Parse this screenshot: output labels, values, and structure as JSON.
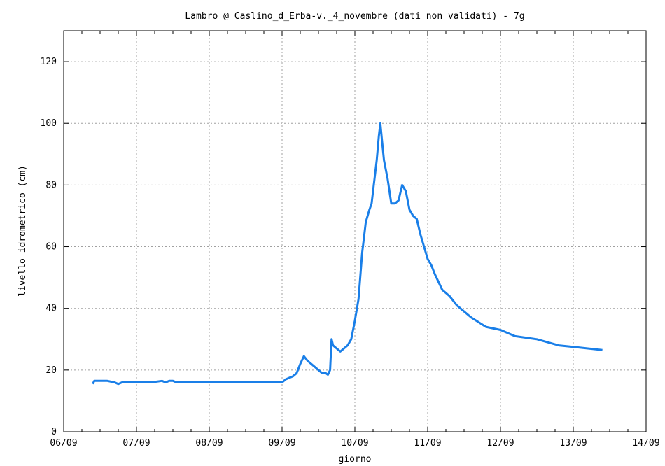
{
  "chart_data": {
    "type": "line",
    "title": "Lambro @ Caslino_d_Erba-v._4_novembre (dati non validati) - 7g",
    "xlabel": "giorno",
    "ylabel": "livello idrometrico (cm)",
    "xlim": [
      "06/09",
      "14/09"
    ],
    "ylim": [
      0,
      130
    ],
    "x_ticks": [
      "06/09",
      "07/09",
      "08/09",
      "09/09",
      "10/09",
      "11/09",
      "12/09",
      "13/09",
      "14/09"
    ],
    "y_ticks": [
      "0",
      "20",
      "40",
      "60",
      "80",
      "100",
      "120"
    ],
    "grid": true,
    "legend": "none",
    "series_color": "#1a7fe8",
    "series": [
      {
        "x_days": [
          0.4,
          0.42,
          0.5,
          0.6,
          0.7,
          0.75,
          0.8,
          1.0,
          1.2,
          1.35,
          1.4,
          1.45,
          1.5,
          1.55,
          1.6,
          1.65,
          1.7,
          1.8,
          2.0,
          2.2,
          2.4,
          2.5,
          2.6,
          2.8,
          2.9,
          3.0,
          3.05,
          3.1,
          3.15,
          3.2,
          3.25,
          3.3,
          3.35,
          3.4,
          3.45,
          3.5,
          3.55,
          3.6,
          3.63,
          3.66,
          3.68,
          3.7,
          3.75,
          3.8,
          3.85,
          3.9,
          3.95,
          4.0,
          4.05,
          4.1,
          4.15,
          4.2,
          4.23,
          4.26,
          4.3,
          4.33,
          4.35,
          4.37,
          4.4,
          4.45,
          4.5,
          4.55,
          4.6,
          4.65,
          4.7,
          4.75,
          4.8,
          4.85,
          4.9,
          4.95,
          5.0,
          5.05,
          5.1,
          5.2,
          5.3,
          5.4,
          5.5,
          5.6,
          5.8,
          6.0,
          6.2,
          6.5,
          6.8,
          7.0,
          7.2,
          7.4
        ],
        "values": [
          15.5,
          16.5,
          16.5,
          16.5,
          16.0,
          15.5,
          16.0,
          16.0,
          16.0,
          16.5,
          16.0,
          16.5,
          16.5,
          16.0,
          16.0,
          16.0,
          16.0,
          16.0,
          16.0,
          16.0,
          16.0,
          16.0,
          16.0,
          16.0,
          16.0,
          16.0,
          17.0,
          17.5,
          18.0,
          19.0,
          22.0,
          24.5,
          23.0,
          22.0,
          21.0,
          20.0,
          19.0,
          19.0,
          18.5,
          20.0,
          30.0,
          28.0,
          27.0,
          26.0,
          27.0,
          28.0,
          30.0,
          36.0,
          43.0,
          58.0,
          68.0,
          72.0,
          74.0,
          80.0,
          88.0,
          96.0,
          100.0,
          95.0,
          88.0,
          82.0,
          74.0,
          74.0,
          75.0,
          80.0,
          78.0,
          72.0,
          70.0,
          69.0,
          64.0,
          60.0,
          56.0,
          54.0,
          51.0,
          46.0,
          44.0,
          41.0,
          39.0,
          37.0,
          34.0,
          33.0,
          31.0,
          30.0,
          28.0,
          27.5,
          27.0,
          26.5
        ]
      }
    ]
  }
}
